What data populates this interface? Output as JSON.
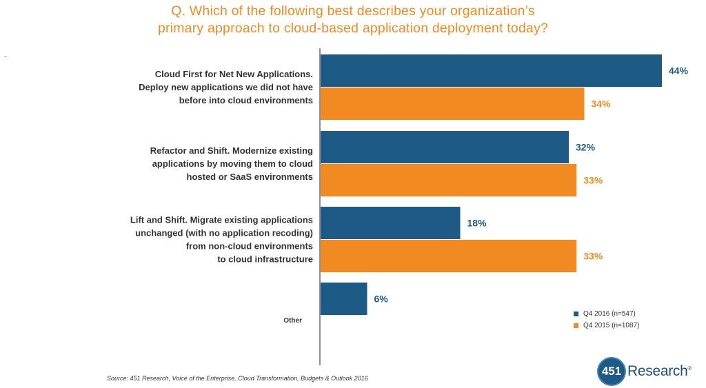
{
  "title_lines": [
    "Q. Which of the following best describes your organization’s",
    "primary approach to cloud-based application deployment today?"
  ],
  "colors": {
    "q4_2016": "#1d5a86",
    "q4_2015": "#f28a22",
    "title": "#f28a22"
  },
  "legend": [
    "Q4 2016 (n=547)",
    "Q4 2015 (n=1087)"
  ],
  "source": "Source: 451 Research, Voice of the Enterprise, Cloud Transformation, Budgets & Outlook 2016",
  "logo": {
    "number": "451",
    "word": "Research",
    "mark": "®"
  },
  "chart_data": {
    "type": "bar",
    "orientation": "horizontal",
    "categories": [
      [
        "Cloud First for Net New Applications.",
        "Deploy new applications we did not have",
        "before into cloud environments"
      ],
      [
        "Refactor and Shift. Modernize existing",
        "applications by moving them to cloud",
        "hosted or SaaS environments"
      ],
      [
        "Lift and Shift. Migrate existing applications",
        "unchanged (with no application recoding)",
        "from non-cloud environments",
        "to cloud infrastructure"
      ],
      [
        "Other"
      ]
    ],
    "series": [
      {
        "name": "Q4 2016 (n=547)",
        "values": [
          44,
          32,
          18,
          6
        ],
        "labels": [
          "44%",
          "32%",
          "18%",
          "6%"
        ]
      },
      {
        "name": "Q4 2015 (n=1087)",
        "values": [
          34,
          33,
          33,
          null
        ],
        "labels": [
          "34%",
          "33%",
          "33%",
          ""
        ]
      }
    ],
    "xlim": [
      0,
      44
    ],
    "grid": false,
    "legend_position": "bottom-right"
  }
}
